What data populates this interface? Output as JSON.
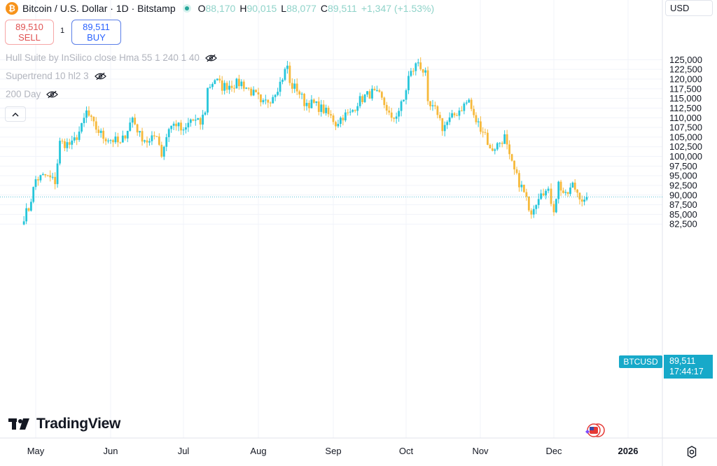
{
  "header": {
    "coin_icon": "bitcoin-icon",
    "title": "Bitcoin / U.S. Dollar · 1D · Bitstamp",
    "ohlc": [
      {
        "key": "O",
        "value": "88,170"
      },
      {
        "key": "H",
        "value": "90,015"
      },
      {
        "key": "L",
        "value": "88,077"
      },
      {
        "key": "C",
        "value": "89,511"
      }
    ],
    "change": "+1,347 (+1.53%)",
    "currency": "USD"
  },
  "trade": {
    "sell_price": "89,510",
    "sell_label": "SELL",
    "spread": "1",
    "buy_price": "89,511",
    "buy_label": "BUY"
  },
  "indicators": [
    {
      "label": "Hull Suite by InSilico close Hma 55 1 240 1 40"
    },
    {
      "label": "Supertrend 10 hl2 3"
    },
    {
      "label": "200 Day"
    }
  ],
  "collapse_icon": "chevron-up-icon",
  "price_tag": {
    "symbol": "BTCUSD",
    "price": "89,511",
    "countdown": "17:44:17"
  },
  "brand": "TradingView",
  "colors": {
    "up": "#26c6da",
    "down": "#f6b93b",
    "tag": "#17a9c9",
    "grid": "#f0f3fa"
  },
  "chart_data": {
    "type": "candlestick",
    "y_ticks": [
      82500,
      85000,
      87500,
      90000,
      92500,
      95000,
      97500,
      100000,
      102500,
      105000,
      107500,
      110000,
      112500,
      115000,
      117500,
      120000,
      122500,
      125000
    ],
    "y_tick_labels": [
      "82,500",
      "85,000",
      "87,500",
      "90,000",
      "92,500",
      "95,000",
      "97,500",
      "100,000",
      "102,500",
      "105,000",
      "107,500",
      "110,000",
      "112,500",
      "115,000",
      "117,500",
      "120,000",
      "122,500",
      "125,000"
    ],
    "x_labels": [
      "May",
      "Jun",
      "Jul",
      "Aug",
      "Sep",
      "Oct",
      "Nov",
      "Dec",
      "2026"
    ],
    "close_path": [
      [
        "Apr 26",
        84500
      ],
      [
        "Apr 28",
        86500
      ],
      [
        "May 1",
        94000
      ],
      [
        "May 5",
        95000
      ],
      [
        "May 9",
        93500
      ],
      [
        "May 11",
        103500
      ],
      [
        "May 16",
        103000
      ],
      [
        "May 20",
        107500
      ],
      [
        "May 22",
        111500
      ],
      [
        "May 25",
        108000
      ],
      [
        "May 29",
        105000
      ],
      [
        "Jun 3",
        104000
      ],
      [
        "Jun 5",
        103000
      ],
      [
        "Jun 10",
        110000
      ],
      [
        "Jun 13",
        105500
      ],
      [
        "Jun 17",
        103500
      ],
      [
        "Jun 20",
        106000
      ],
      [
        "Jun 22",
        100500
      ],
      [
        "Jun 25",
        107500
      ],
      [
        "Jun 28",
        108500
      ],
      [
        "Jul 1",
        106000
      ],
      [
        "Jul 4",
        109500
      ],
      [
        "Jul 8",
        108500
      ],
      [
        "Jul 10",
        112000
      ],
      [
        "Jul 11",
        117500
      ],
      [
        "Jul 14",
        120000
      ],
      [
        "Jul 17",
        118000
      ],
      [
        "Jul 20",
        118500
      ],
      [
        "Jul 25",
        119000
      ],
      [
        "Aug 1",
        115000
      ],
      [
        "Aug 2",
        113000
      ],
      [
        "Aug 6",
        115000
      ],
      [
        "Aug 10",
        119000
      ],
      [
        "Aug 13",
        123500
      ],
      [
        "Aug 14",
        118500
      ],
      [
        "Aug 17",
        117500
      ],
      [
        "Aug 20",
        114000
      ],
      [
        "Aug 24",
        113500
      ],
      [
        "Aug 28",
        112000
      ],
      [
        "Sep 1",
        109500
      ],
      [
        "Sep 2",
        108500
      ],
      [
        "Sep 5",
        110500
      ],
      [
        "Sep 8",
        111000
      ],
      [
        "Sep 11",
        114000
      ],
      [
        "Sep 14",
        115500
      ],
      [
        "Sep 17",
        116500
      ],
      [
        "Sep 20",
        115500
      ],
      [
        "Sep 23",
        112500
      ],
      [
        "Sep 25",
        109000
      ],
      [
        "Sep 28",
        112000
      ],
      [
        "Sep 30",
        114500
      ],
      [
        "Oct 2",
        120500
      ],
      [
        "Oct 4",
        122500
      ],
      [
        "Oct 6",
        124500
      ],
      [
        "Oct 9",
        121000
      ],
      [
        "Oct 10",
        113000
      ],
      [
        "Oct 14",
        111500
      ],
      [
        "Oct 16",
        107500
      ],
      [
        "Oct 20",
        110000
      ],
      [
        "Oct 23",
        112000
      ],
      [
        "Oct 27",
        114500
      ],
      [
        "Oct 29",
        110000
      ],
      [
        "Nov 3",
        106000
      ],
      [
        "Nov 5",
        101500
      ],
      [
        "Nov 8",
        103000
      ],
      [
        "Nov 11",
        105000
      ],
      [
        "Nov 13",
        99500
      ],
      [
        "Nov 16",
        94500
      ],
      [
        "Nov 18",
        92000
      ],
      [
        "Nov 20",
        89000
      ],
      [
        "Nov 21",
        85000
      ],
      [
        "Nov 24",
        88500
      ],
      [
        "Nov 26",
        91500
      ],
      [
        "Nov 29",
        90500
      ],
      [
        "Dec 1",
        86500
      ],
      [
        "Dec 3",
        93000
      ],
      [
        "Dec 6",
        89500
      ],
      [
        "Dec 9",
        92500
      ],
      [
        "Dec 12",
        90000
      ],
      [
        "Dec 14",
        88000
      ],
      [
        "Dec 15",
        89511
      ]
    ],
    "last_price": 89511
  }
}
